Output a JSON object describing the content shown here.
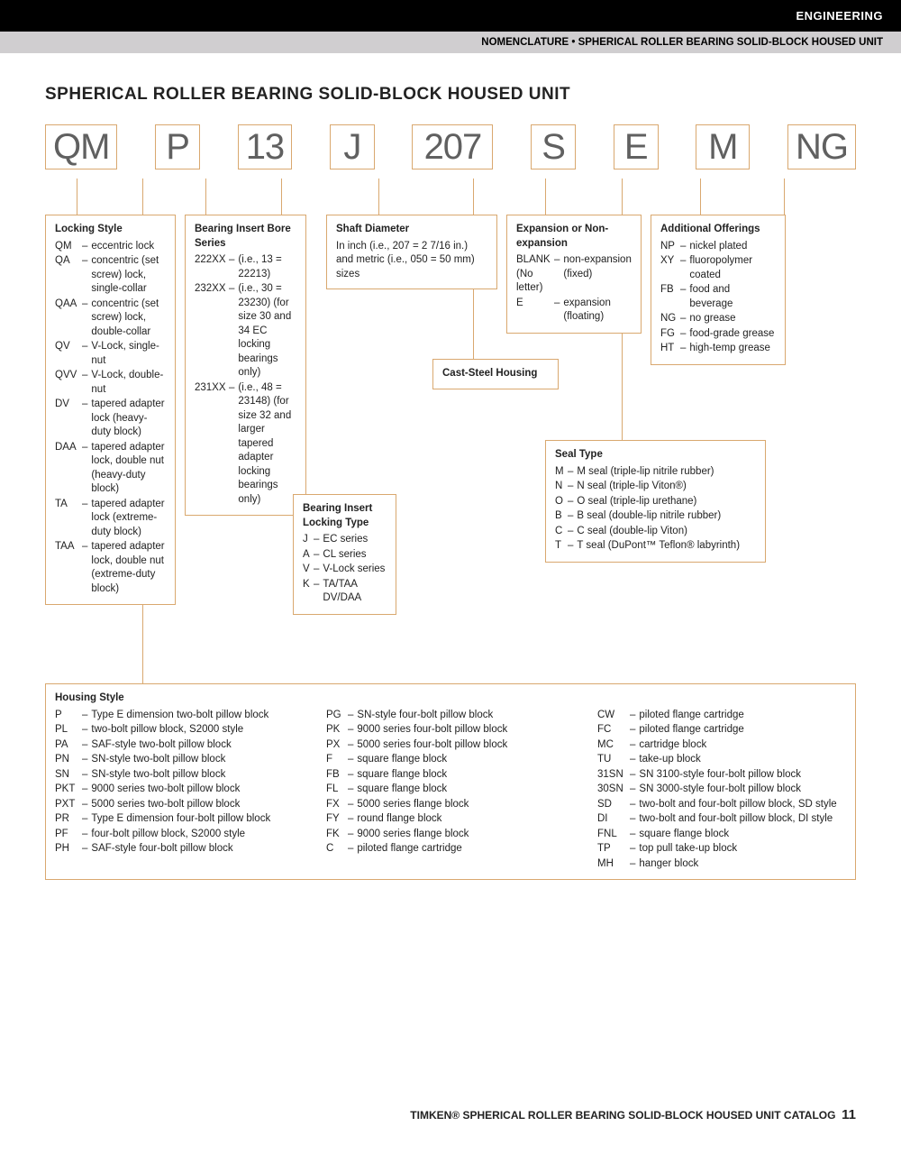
{
  "header": {
    "category": "ENGINEERING",
    "subtitle": "NOMENCLATURE • SPHERICAL ROLLER BEARING SOLID-BLOCK HOUSED UNIT"
  },
  "title": "SPHERICAL ROLLER BEARING SOLID-BLOCK HOUSED UNIT",
  "code_parts": [
    "QM",
    "P",
    "13",
    "J",
    "207",
    "S",
    "E",
    "M",
    "NG"
  ],
  "locking_style": {
    "title": "Locking Style",
    "items": [
      {
        "c": "QM",
        "t": "eccentric lock"
      },
      {
        "c": "QA",
        "t": "concentric (set screw) lock, single-collar"
      },
      {
        "c": "QAA",
        "t": "concentric (set screw) lock, double-collar"
      },
      {
        "c": "QV",
        "t": "V-Lock, single-nut"
      },
      {
        "c": "QVV",
        "t": "V-Lock, double-nut"
      },
      {
        "c": "DV",
        "t": "tapered adapter lock (heavy-duty block)"
      },
      {
        "c": "DAA",
        "t": "tapered adapter lock, double nut (heavy-duty block)"
      },
      {
        "c": "TA",
        "t": "tapered adapter lock (extreme-duty block)"
      },
      {
        "c": "TAA",
        "t": "tapered adapter lock, double nut (extreme-duty block)"
      }
    ]
  },
  "bearing_bore": {
    "title": "Bearing Insert Bore Series",
    "items": [
      {
        "c": "222XX",
        "t": "(i.e., 13 = 22213)"
      },
      {
        "c": "232XX",
        "t": "(i.e., 30 = 23230) (for size 30 and 34 EC locking bearings only)"
      },
      {
        "c": "231XX",
        "t": "(i.e., 48 = 23148) (for size 32 and larger tapered adapter locking bearings only)"
      }
    ]
  },
  "bearing_lock_type": {
    "title": "Bearing Insert Locking Type",
    "items": [
      {
        "c": "J",
        "t": "EC series"
      },
      {
        "c": "A",
        "t": "CL series"
      },
      {
        "c": "V",
        "t": "V-Lock series"
      },
      {
        "c": "K",
        "t": "TA/TAA DV/DAA"
      }
    ]
  },
  "shaft_diameter": {
    "title": "Shaft Diameter",
    "text": "In inch (i.e., 207 = 2 7/16 in.) and metric (i.e., 050 = 50 mm) sizes"
  },
  "cast_steel": {
    "title": "Cast-Steel Housing"
  },
  "expansion": {
    "title": "Expansion or Non-expansion",
    "items": [
      {
        "c": "BLANK (No letter)",
        "t": "non-expansion (fixed)"
      },
      {
        "c": "E",
        "t": "expansion (floating)"
      }
    ]
  },
  "seal_type": {
    "title": "Seal Type",
    "items": [
      {
        "c": "M",
        "t": "M seal (triple-lip nitrile rubber)"
      },
      {
        "c": "N",
        "t": "N seal (triple-lip Viton®)"
      },
      {
        "c": "O",
        "t": "O seal (triple-lip urethane)"
      },
      {
        "c": "B",
        "t": "B seal (double-lip nitrile rubber)"
      },
      {
        "c": "C",
        "t": "C seal (double-lip Viton)"
      },
      {
        "c": "T",
        "t": "T seal (DuPont™ Teflon® labyrinth)"
      }
    ]
  },
  "additional": {
    "title": "Additional Offerings",
    "items": [
      {
        "c": "NP",
        "t": "nickel plated"
      },
      {
        "c": "XY",
        "t": "fluoropolymer coated"
      },
      {
        "c": "FB",
        "t": "food and beverage"
      },
      {
        "c": "NG",
        "t": "no grease"
      },
      {
        "c": "FG",
        "t": "food-grade grease"
      },
      {
        "c": "HT",
        "t": "high-temp grease"
      }
    ]
  },
  "housing_style": {
    "title": "Housing Style",
    "col1": [
      {
        "c": "P",
        "t": "Type E dimension two-bolt pillow block"
      },
      {
        "c": "PL",
        "t": "two-bolt pillow block, S2000 style"
      },
      {
        "c": "PA",
        "t": "SAF-style two-bolt pillow block"
      },
      {
        "c": "PN",
        "t": "SN-style two-bolt pillow block"
      },
      {
        "c": "SN",
        "t": "SN-style two-bolt pillow block"
      },
      {
        "c": "PKT",
        "t": "9000 series two-bolt pillow block"
      },
      {
        "c": "PXT",
        "t": "5000 series two-bolt pillow block"
      },
      {
        "c": "PR",
        "t": "Type E dimension four-bolt pillow block"
      },
      {
        "c": "PF",
        "t": "four-bolt pillow block, S2000 style"
      },
      {
        "c": "PH",
        "t": "SAF-style four-bolt pillow block"
      }
    ],
    "col2": [
      {
        "c": "PG",
        "t": "SN-style four-bolt pillow block"
      },
      {
        "c": "PK",
        "t": "9000 series four-bolt pillow block"
      },
      {
        "c": "PX",
        "t": "5000 series four-bolt pillow block"
      },
      {
        "c": "F",
        "t": "square flange block"
      },
      {
        "c": "FB",
        "t": "square flange block"
      },
      {
        "c": "FL",
        "t": "square flange block"
      },
      {
        "c": "FX",
        "t": "5000 series flange block"
      },
      {
        "c": "FY",
        "t": "round flange block"
      },
      {
        "c": "FK",
        "t": "9000 series flange block"
      },
      {
        "c": "C",
        "t": "piloted flange cartridge"
      }
    ],
    "col3": [
      {
        "c": "CW",
        "t": "piloted flange cartridge"
      },
      {
        "c": "FC",
        "t": "piloted flange cartridge"
      },
      {
        "c": "MC",
        "t": "cartridge block"
      },
      {
        "c": "TU",
        "t": "take-up block"
      },
      {
        "c": "31SN",
        "t": "SN 3100-style four-bolt pillow block"
      },
      {
        "c": "30SN",
        "t": "SN 3000-style four-bolt pillow block"
      },
      {
        "c": "SD",
        "t": "two-bolt and four-bolt pillow block, SD style"
      },
      {
        "c": "DI",
        "t": "two-bolt and four-bolt pillow block, DI style"
      },
      {
        "c": "FNL",
        "t": "square flange block"
      },
      {
        "c": "TP",
        "t": "top pull take-up block"
      },
      {
        "c": "MH",
        "t": "hanger block"
      }
    ]
  },
  "footer": {
    "text": "TIMKEN® SPHERICAL ROLLER BEARING SOLID-BLOCK HOUSED UNIT CATALOG",
    "page": "11"
  },
  "colors": {
    "box_border": "#d9a86f",
    "text": "#222222",
    "code_text": "#606060"
  }
}
